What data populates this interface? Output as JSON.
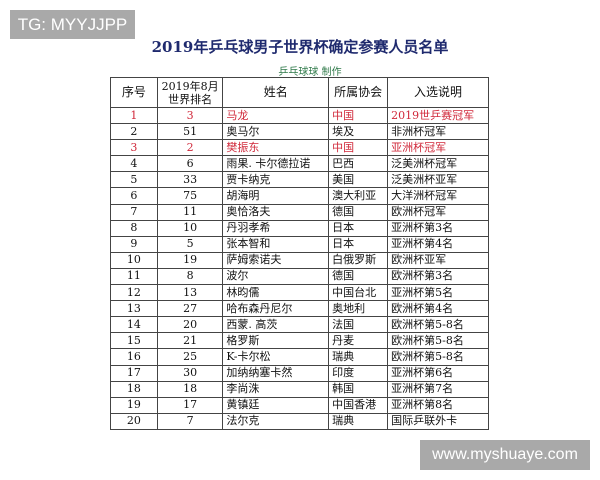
{
  "watermarks": {
    "top_left": "TG: MYYJJPP",
    "bottom_right": "www.myshuaye.com"
  },
  "title": "2019年乒乓球男子世界杯确定参赛人员名单",
  "subtitle": "乒乓球球 制作",
  "colors": {
    "title": "#1f2a6e",
    "subtitle": "#2f7a4a",
    "highlight": "#d0283a"
  },
  "table": {
    "headers": [
      "序号",
      "2019年8月世界排名",
      "姓名",
      "所属协会",
      "入选说明"
    ],
    "rows": [
      {
        "no": "1",
        "rank": "3",
        "name": "马龙",
        "assoc": "中国",
        "note": "2019世乒赛冠军",
        "highlight": true
      },
      {
        "no": "2",
        "rank": "51",
        "name": "奥马尔",
        "assoc": "埃及",
        "note": "非洲杯冠军"
      },
      {
        "no": "3",
        "rank": "2",
        "name": "樊振东",
        "assoc": "中国",
        "note": "亚洲杯冠军",
        "highlight": true
      },
      {
        "no": "4",
        "rank": "6",
        "name": "雨果. 卡尔德拉诺",
        "assoc": "巴西",
        "note": "泛美洲杯冠军"
      },
      {
        "no": "5",
        "rank": "33",
        "name": "贾卡纳克",
        "assoc": "美国",
        "note": "泛美洲杯亚军"
      },
      {
        "no": "6",
        "rank": "75",
        "name": "胡海明",
        "assoc": "澳大利亚",
        "note": "大洋洲杯冠军"
      },
      {
        "no": "7",
        "rank": "11",
        "name": "奥恰洛夫",
        "assoc": "德国",
        "note": "欧洲杯冠军"
      },
      {
        "no": "8",
        "rank": "10",
        "name": "丹羽孝希",
        "assoc": "日本",
        "note": "亚洲杯第3名"
      },
      {
        "no": "9",
        "rank": "5",
        "name": "张本智和",
        "assoc": "日本",
        "note": "亚洲杯第4名"
      },
      {
        "no": "10",
        "rank": "19",
        "name": "萨姆索诺夫",
        "assoc": "白俄罗斯",
        "note": "欧洲杯亚军"
      },
      {
        "no": "11",
        "rank": "8",
        "name": "波尔",
        "assoc": "德国",
        "note": "欧洲杯第3名"
      },
      {
        "no": "12",
        "rank": "13",
        "name": "林昀儒",
        "assoc": "中国台北",
        "note": "亚洲杯第5名"
      },
      {
        "no": "13",
        "rank": "27",
        "name": "哈布森丹尼尔",
        "assoc": "奥地利",
        "note": "欧洲杯第4名"
      },
      {
        "no": "14",
        "rank": "20",
        "name": "西蒙. 高茨",
        "assoc": "法国",
        "note": "欧洲杯第5-8名"
      },
      {
        "no": "15",
        "rank": "21",
        "name": "格罗斯",
        "assoc": "丹麦",
        "note": "欧洲杯第5-8名"
      },
      {
        "no": "16",
        "rank": "25",
        "name": "K-卡尔松",
        "assoc": "瑞典",
        "note": "欧洲杯第5-8名"
      },
      {
        "no": "17",
        "rank": "30",
        "name": "加纳纳塞卡然",
        "assoc": "印度",
        "note": "亚洲杯第6名"
      },
      {
        "no": "18",
        "rank": "18",
        "name": "李尚洙",
        "assoc": "韩国",
        "note": "亚洲杯第7名"
      },
      {
        "no": "19",
        "rank": "17",
        "name": "黄镇廷",
        "assoc": "中国香港",
        "note": "亚洲杯第8名"
      },
      {
        "no": "20",
        "rank": "7",
        "name": "法尔克",
        "assoc": "瑞典",
        "note": "国际乒联外卡"
      }
    ]
  }
}
